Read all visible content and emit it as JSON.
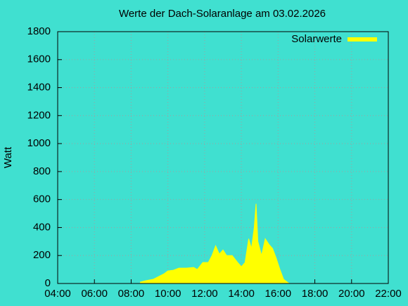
{
  "chart_data": {
    "type": "area",
    "title": "Werte der Dach-Solaranlage am 03.02.2026",
    "y_label": "Watt",
    "x": [
      8.5,
      8.8,
      9.2,
      9.5,
      9.8,
      10.0,
      10.3,
      10.6,
      11.0,
      11.4,
      11.6,
      11.9,
      12.2,
      12.4,
      12.6,
      12.8,
      13.0,
      13.2,
      13.5,
      13.8,
      14.0,
      14.2,
      14.4,
      14.55,
      14.7,
      14.8,
      14.9,
      15.1,
      15.3,
      15.5,
      15.7,
      15.9,
      16.1,
      16.3,
      16.5,
      16.6
    ],
    "series": [
      {
        "name": "Solarwerte",
        "color": "#ffff00",
        "values": [
          10,
          20,
          30,
          50,
          70,
          90,
          95,
          110,
          110,
          115,
          100,
          150,
          150,
          200,
          270,
          210,
          240,
          200,
          200,
          150,
          120,
          150,
          320,
          250,
          400,
          570,
          300,
          200,
          320,
          280,
          250,
          180,
          100,
          30,
          10,
          0
        ]
      }
    ],
    "xlim": [
      4,
      22
    ],
    "xticks": [
      {
        "value": 4,
        "label": "04:00"
      },
      {
        "value": 6,
        "label": "06:00"
      },
      {
        "value": 8,
        "label": "08:00"
      },
      {
        "value": 10,
        "label": "10:00"
      },
      {
        "value": 12,
        "label": "12:00"
      },
      {
        "value": 14,
        "label": "14:00"
      },
      {
        "value": 16,
        "label": "16:00"
      },
      {
        "value": 18,
        "label": "18:00"
      },
      {
        "value": 20,
        "label": "20:00"
      },
      {
        "value": 22,
        "label": "22:00"
      }
    ],
    "ylim": [
      0,
      1800
    ],
    "yticks": [
      0,
      200,
      400,
      600,
      800,
      1000,
      1200,
      1400,
      1600,
      1800
    ],
    "grid": true,
    "legend": "top-right"
  }
}
